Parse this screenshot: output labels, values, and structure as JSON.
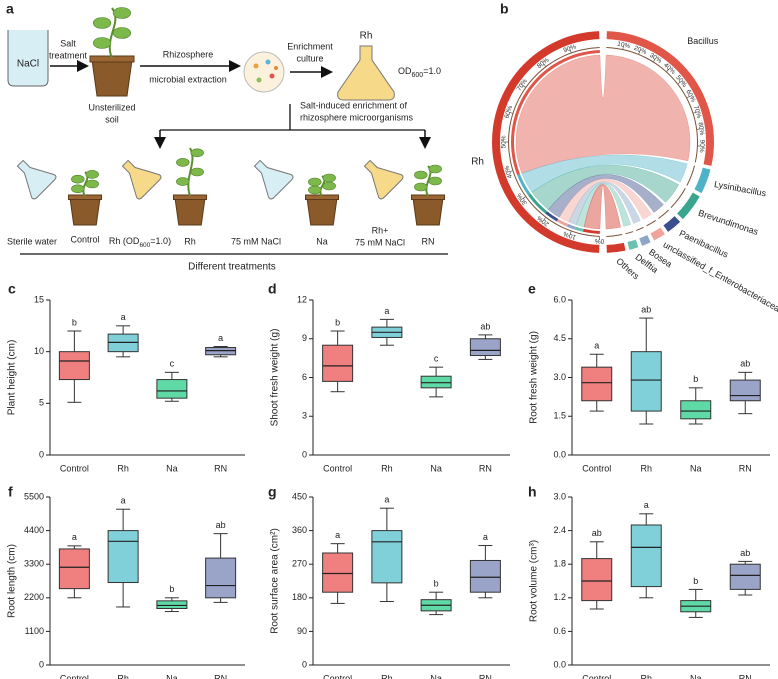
{
  "panel_a": {
    "label": "a",
    "nacl": "NaCl",
    "salt_treatment": [
      "Salt",
      "treatment"
    ],
    "soil": [
      "Unsterilized",
      "soil"
    ],
    "extraction": [
      "Rhizosphere",
      "microbial extraction"
    ],
    "enrichment": [
      "Enrichment",
      "culture"
    ],
    "flask_label": "Rh",
    "od": [
      "OD",
      "600",
      "=1.0"
    ],
    "enrichment_note": [
      "Salt-induced enrichment of",
      "rhizosphere microorganisms"
    ],
    "treatments": [
      {
        "solution": [
          "Sterile water"
        ],
        "name": "Control"
      },
      {
        "solution": [
          "Rh (OD",
          "600",
          "=1.0)"
        ],
        "name": "Rh"
      },
      {
        "solution": [
          "75 mM NaCl"
        ],
        "name": "Na"
      },
      {
        "solution": [
          "Rh+",
          "75 mM NaCl"
        ],
        "name": "RN"
      }
    ],
    "footer": "Different treatments"
  },
  "chart_data": [
    {
      "type": "chord",
      "panel": "b",
      "source": "Rh",
      "source_color": "#d33a2c",
      "categories": [
        "Bacillus",
        "Lysinibacillus",
        "Brevundimonas",
        "Paenibacillus",
        "unclassified_f_Enterobacteriaceae",
        "Bosea",
        "Delftia",
        "Others"
      ],
      "values": [
        62,
        8,
        9,
        5,
        4,
        3,
        3,
        6
      ],
      "colors": [
        "#e0574a",
        "#4fb3c8",
        "#3aa58f",
        "#3b4f8c",
        "#f0a49a",
        "#8ea6c8",
        "#6cc0b0",
        "#d33a2c"
      ],
      "source_ticks": [
        {
          "value": 0,
          "label": "0%"
        },
        {
          "value": 10,
          "label": "10%"
        },
        {
          "value": 20,
          "label": "20%"
        },
        {
          "value": 30,
          "label": "30%"
        },
        {
          "value": 40,
          "label": "40%"
        },
        {
          "value": 50,
          "label": "50%"
        },
        {
          "value": 60,
          "label": "60%"
        },
        {
          "value": 70,
          "label": "70%"
        },
        {
          "value": 80,
          "label": "80%"
        },
        {
          "value": 90,
          "label": "90%"
        }
      ],
      "target_ticks": [
        {
          "value": 10,
          "label": "10%"
        },
        {
          "value": 20,
          "label": "20%"
        },
        {
          "value": 30,
          "label": "30%"
        },
        {
          "value": 40,
          "label": "40%"
        },
        {
          "value": 50,
          "label": "50%"
        },
        {
          "value": 60,
          "label": "60%"
        },
        {
          "value": 70,
          "label": "70%"
        },
        {
          "value": 80,
          "label": "80%"
        },
        {
          "value": 90,
          "label": "90%"
        }
      ]
    },
    {
      "type": "box",
      "panel": "c",
      "y_label": "Plant height (cm)",
      "categories": [
        "Control",
        "Rh",
        "Na",
        "RN"
      ],
      "colors": [
        "#f08080",
        "#7fd0d8",
        "#5fd9a6",
        "#9aa3c8"
      ],
      "ylim": [
        0,
        15
      ],
      "yticks": [
        0,
        5,
        10,
        15
      ],
      "boxes": [
        {
          "min": 5.1,
          "q1": 7.3,
          "median": 9.1,
          "q3": 10.0,
          "max": 12.0
        },
        {
          "min": 9.5,
          "q1": 10.0,
          "median": 10.9,
          "q3": 11.7,
          "max": 12.5
        },
        {
          "min": 5.2,
          "q1": 5.5,
          "median": 6.2,
          "q3": 7.3,
          "max": 8.0
        },
        {
          "min": 9.5,
          "q1": 9.7,
          "median": 10.1,
          "q3": 10.4,
          "max": 10.5
        }
      ],
      "letters": [
        "b",
        "a",
        "c",
        "a"
      ]
    },
    {
      "type": "box",
      "panel": "d",
      "y_label": "Shoot fresh weight (g)",
      "categories": [
        "Control",
        "Rh",
        "Na",
        "RN"
      ],
      "colors": [
        "#f08080",
        "#7fd0d8",
        "#5fd9a6",
        "#9aa3c8"
      ],
      "ylim": [
        0,
        12
      ],
      "yticks": [
        0,
        3,
        6,
        9,
        12
      ],
      "boxes": [
        {
          "min": 4.9,
          "q1": 5.7,
          "median": 6.9,
          "q3": 8.5,
          "max": 9.6
        },
        {
          "min": 8.5,
          "q1": 9.1,
          "median": 9.5,
          "q3": 9.9,
          "max": 10.5
        },
        {
          "min": 4.5,
          "q1": 5.2,
          "median": 5.6,
          "q3": 6.1,
          "max": 6.8
        },
        {
          "min": 7.4,
          "q1": 7.7,
          "median": 8.1,
          "q3": 9.0,
          "max": 9.3
        }
      ],
      "letters": [
        "b",
        "a",
        "c",
        "ab"
      ]
    },
    {
      "type": "box",
      "panel": "e",
      "y_label": "Root fresh weight (g)",
      "categories": [
        "Control",
        "Rh",
        "Na",
        "RN"
      ],
      "colors": [
        "#f08080",
        "#7fd0d8",
        "#5fd9a6",
        "#9aa3c8"
      ],
      "ylim": [
        0,
        6
      ],
      "yticks": [
        {
          "value": 0,
          "label": "0.0"
        },
        1.5,
        {
          "value": 3,
          "label": "3.0"
        },
        4.5,
        {
          "value": 6,
          "label": "6.0"
        }
      ],
      "boxes": [
        {
          "min": 1.7,
          "q1": 2.1,
          "median": 2.8,
          "q3": 3.4,
          "max": 3.9
        },
        {
          "min": 1.2,
          "q1": 1.7,
          "median": 2.9,
          "q3": 4.0,
          "max": 5.3
        },
        {
          "min": 1.2,
          "q1": 1.4,
          "median": 1.7,
          "q3": 2.1,
          "max": 2.6
        },
        {
          "min": 1.6,
          "q1": 2.1,
          "median": 2.3,
          "q3": 2.9,
          "max": 3.2
        }
      ],
      "letters": [
        "a",
        "ab",
        "b",
        "ab"
      ]
    },
    {
      "type": "box",
      "panel": "f",
      "y_label": "Root length (cm)",
      "categories": [
        "Control",
        "Rh",
        "Na",
        "RN"
      ],
      "colors": [
        "#f08080",
        "#7fd0d8",
        "#5fd9a6",
        "#9aa3c8"
      ],
      "ylim": [
        0,
        5500
      ],
      "yticks": [
        0,
        1100,
        2200,
        3300,
        4400,
        5500
      ],
      "boxes": [
        {
          "min": 2200,
          "q1": 2500,
          "median": 3200,
          "q3": 3800,
          "max": 3900
        },
        {
          "min": 1900,
          "q1": 2700,
          "median": 4050,
          "q3": 4400,
          "max": 5100
        },
        {
          "min": 1750,
          "q1": 1850,
          "median": 1950,
          "q3": 2100,
          "max": 2200
        },
        {
          "min": 2050,
          "q1": 2200,
          "median": 2600,
          "q3": 3500,
          "max": 4300
        }
      ],
      "letters": [
        "a",
        "a",
        "b",
        "ab"
      ]
    },
    {
      "type": "box",
      "panel": "g",
      "y_label": "Root surface area (cm²)",
      "categories": [
        "Control",
        "Rh",
        "Na",
        "RN"
      ],
      "colors": [
        "#f08080",
        "#7fd0d8",
        "#5fd9a6",
        "#9aa3c8"
      ],
      "ylim": [
        0,
        450
      ],
      "yticks": [
        0,
        90,
        180,
        270,
        360,
        450
      ],
      "boxes": [
        {
          "min": 165,
          "q1": 195,
          "median": 245,
          "q3": 300,
          "max": 325
        },
        {
          "min": 170,
          "q1": 220,
          "median": 330,
          "q3": 360,
          "max": 420
        },
        {
          "min": 135,
          "q1": 145,
          "median": 160,
          "q3": 175,
          "max": 195
        },
        {
          "min": 180,
          "q1": 195,
          "median": 235,
          "q3": 280,
          "max": 320
        }
      ],
      "letters": [
        "a",
        "a",
        "b",
        "a"
      ]
    },
    {
      "type": "box",
      "panel": "h",
      "y_label": "Root volume (cm³)",
      "categories": [
        "Control",
        "Rh",
        "Na",
        "RN"
      ],
      "colors": [
        "#f08080",
        "#7fd0d8",
        "#5fd9a6",
        "#9aa3c8"
      ],
      "ylim": [
        0,
        3
      ],
      "yticks": [
        {
          "value": 0,
          "label": "0.0"
        },
        0.6,
        1.2,
        1.8,
        2.4,
        {
          "value": 3,
          "label": "3.0"
        }
      ],
      "boxes": [
        {
          "min": 1.0,
          "q1": 1.15,
          "median": 1.5,
          "q3": 1.9,
          "max": 2.2
        },
        {
          "min": 1.2,
          "q1": 1.4,
          "median": 2.1,
          "q3": 2.5,
          "max": 2.7
        },
        {
          "min": 0.85,
          "q1": 0.95,
          "median": 1.05,
          "q3": 1.15,
          "max": 1.35
        },
        {
          "min": 1.25,
          "q1": 1.35,
          "median": 1.6,
          "q3": 1.8,
          "max": 1.85
        }
      ],
      "letters": [
        "ab",
        "a",
        "b",
        "ab"
      ]
    }
  ]
}
